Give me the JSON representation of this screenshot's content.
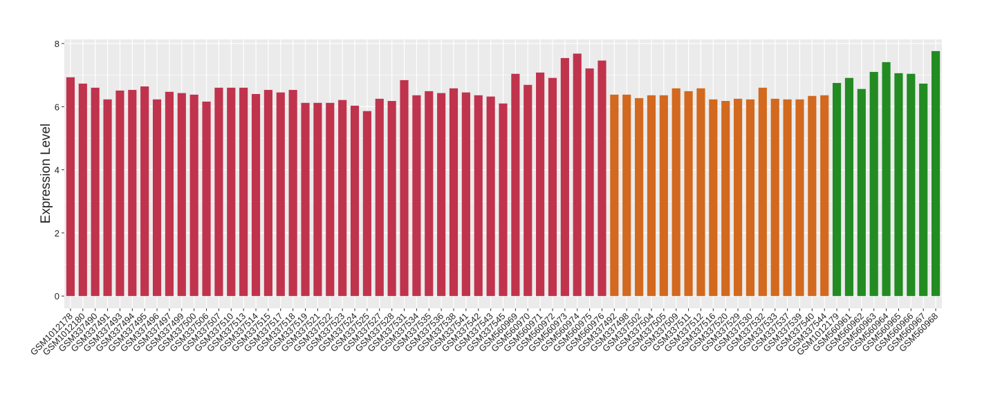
{
  "chart_data": {
    "type": "bar",
    "y_label": "Expression Level",
    "categories": [
      "GSM1012178",
      "GSM1012180",
      "GSM337490",
      "GSM337491",
      "GSM337493",
      "GSM337494",
      "GSM337495",
      "GSM337496",
      "GSM337497",
      "GSM337499",
      "GSM337500",
      "GSM337506",
      "GSM337507",
      "GSM337510",
      "GSM337513",
      "GSM337514",
      "GSM337515",
      "GSM337517",
      "GSM337518",
      "GSM337519",
      "GSM337521",
      "GSM337522",
      "GSM337523",
      "GSM337524",
      "GSM337525",
      "GSM337527",
      "GSM337528",
      "GSM337531",
      "GSM337534",
      "GSM337535",
      "GSM337536",
      "GSM337538",
      "GSM337541",
      "GSM337542",
      "GSM337543",
      "GSM337545",
      "GSM560969",
      "GSM560970",
      "GSM560971",
      "GSM560972",
      "GSM560973",
      "GSM560974",
      "GSM560975",
      "GSM560976",
      "GSM337492",
      "GSM337498",
      "GSM337502",
      "GSM337504",
      "GSM337505",
      "GSM337509",
      "GSM337511",
      "GSM337512",
      "GSM337516",
      "GSM337520",
      "GSM337529",
      "GSM337530",
      "GSM337532",
      "GSM337533",
      "GSM337537",
      "GSM337539",
      "GSM337540",
      "GSM337544",
      "GSM1012179",
      "GSM560961",
      "GSM560962",
      "GSM560963",
      "GSM560964",
      "GSM560965",
      "GSM560966",
      "GSM560967",
      "GSM560968"
    ],
    "values": [
      6.93,
      6.73,
      6.6,
      6.23,
      6.51,
      6.53,
      6.64,
      6.23,
      6.47,
      6.43,
      6.38,
      6.16,
      6.6,
      6.6,
      6.6,
      6.4,
      6.53,
      6.45,
      6.53,
      6.12,
      6.12,
      6.12,
      6.21,
      6.03,
      5.86,
      6.25,
      6.18,
      6.84,
      6.36,
      6.49,
      6.43,
      6.58,
      6.45,
      6.36,
      6.32,
      6.1,
      7.04,
      6.69,
      7.08,
      6.91,
      7.54,
      7.68,
      7.21,
      7.46,
      6.38,
      6.38,
      6.27,
      6.36,
      6.36,
      6.58,
      6.49,
      6.58,
      6.23,
      6.18,
      6.25,
      6.23,
      6.6,
      6.25,
      6.23,
      6.23,
      6.34,
      6.36,
      6.75,
      6.91,
      6.56,
      7.1,
      7.41,
      7.06,
      7.04,
      6.73,
      7.76
    ],
    "bar_colors": [
      "#c0334d",
      "#c0334d",
      "#c0334d",
      "#c0334d",
      "#c0334d",
      "#c0334d",
      "#c0334d",
      "#c0334d",
      "#c0334d",
      "#c0334d",
      "#c0334d",
      "#c0334d",
      "#c0334d",
      "#c0334d",
      "#c0334d",
      "#c0334d",
      "#c0334d",
      "#c0334d",
      "#c0334d",
      "#c0334d",
      "#c0334d",
      "#c0334d",
      "#c0334d",
      "#c0334d",
      "#c0334d",
      "#c0334d",
      "#c0334d",
      "#c0334d",
      "#c0334d",
      "#c0334d",
      "#c0334d",
      "#c0334d",
      "#c0334d",
      "#c0334d",
      "#c0334d",
      "#c0334d",
      "#c0334d",
      "#c0334d",
      "#c0334d",
      "#c0334d",
      "#c0334d",
      "#c0334d",
      "#c0334d",
      "#c0334d",
      "#d2691e",
      "#d2691e",
      "#d2691e",
      "#d2691e",
      "#d2691e",
      "#d2691e",
      "#d2691e",
      "#d2691e",
      "#d2691e",
      "#d2691e",
      "#d2691e",
      "#d2691e",
      "#d2691e",
      "#d2691e",
      "#d2691e",
      "#d2691e",
      "#d2691e",
      "#d2691e",
      "#228b22",
      "#228b22",
      "#228b22",
      "#228b22",
      "#228b22",
      "#228b22",
      "#228b22",
      "#228b22",
      "#228b22"
    ],
    "ylim": [
      -0.39,
      8.13
    ],
    "yticks": [
      0,
      2,
      4,
      6,
      8
    ],
    "grid": true
  }
}
